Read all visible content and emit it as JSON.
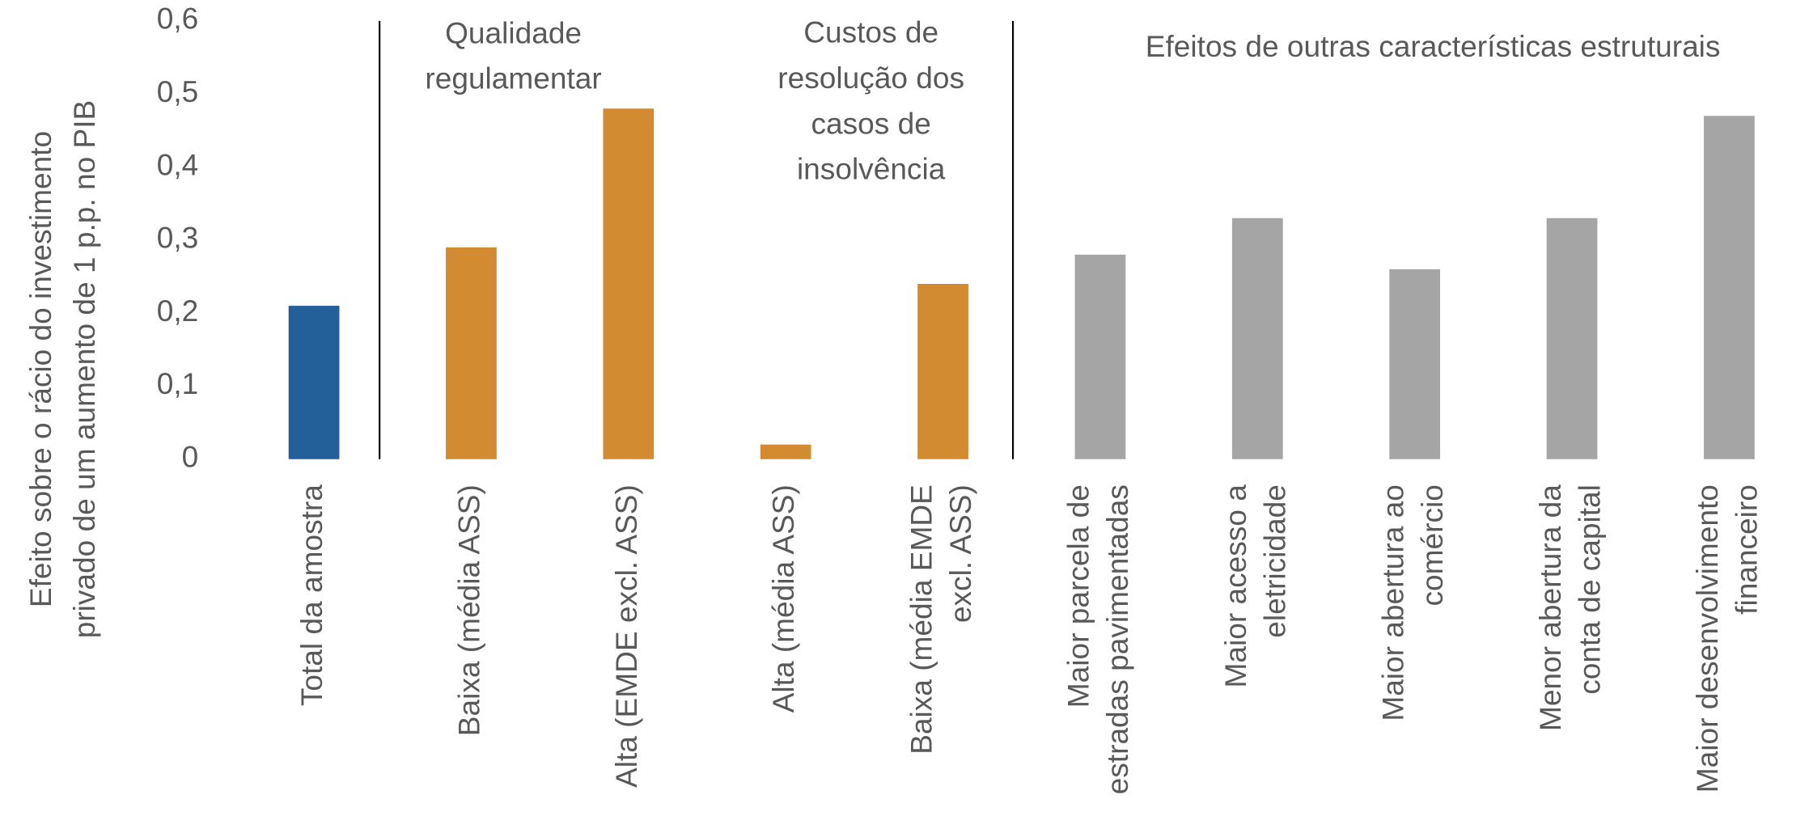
{
  "chart_data": {
    "type": "bar",
    "y_label": "Efeito sobre o rácio do investimento privado de um aumento de 1 p.p. no PIB",
    "annotations": [
      "Qualidade regulamentar",
      "Custos de resolução dos casos de insolvência",
      "Efeitos de outras características estruturais"
    ],
    "categories": [
      "Total da amostra",
      "Baixa (média ASS)",
      "Alta (EMDE excl. ASS)",
      "Alta (média ASS)",
      "Baixa (média EMDE excl. ASS)",
      "Maior parcela de estradas pavimentadas",
      "Maior acesso a eletricidade",
      "Maior abertura ao comércio",
      "Menor abertura da conta de capital",
      "Maior desenvolvimento financeiro"
    ],
    "values": [
      0.21,
      0.29,
      0.48,
      0.02,
      0.24,
      0.28,
      0.33,
      0.26,
      0.33,
      0.47
    ],
    "colors": [
      "#23609a",
      "#d38b32",
      "#d38b32",
      "#d38b32",
      "#d38b32",
      "#a5a5a5",
      "#a5a5a5",
      "#a5a5a5",
      "#a5a5a5",
      "#a5a5a5"
    ],
    "ylim": [
      0,
      0.6
    ],
    "yticks": [
      0,
      {
        "value": 0.1,
        "label": "0,1"
      },
      {
        "value": 0.2,
        "label": "0,2"
      },
      {
        "value": 0.3,
        "label": "0,3"
      },
      {
        "value": 0.4,
        "label": "0,4"
      },
      {
        "value": 0.5,
        "label": "0,5"
      },
      {
        "value": 0.6,
        "label": "0,6"
      }
    ],
    "grid": false
  }
}
